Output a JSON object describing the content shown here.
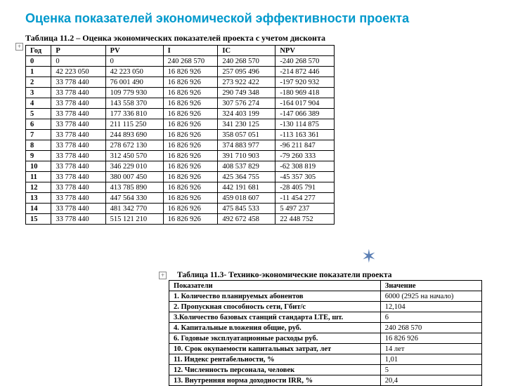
{
  "title": "Оценка показателей экономической эффективности проекта",
  "table1": {
    "caption": "Таблица 11.2 – Оценка экономических показателей проекта с учетом дисконта",
    "columns": [
      "Год",
      "P",
      "PV",
      "I",
      "IC",
      "NPV"
    ],
    "col_widths": [
      "30px",
      "80px",
      "84px",
      "76px",
      "84px",
      "84px"
    ],
    "rows": [
      [
        "0",
        "0",
        "0",
        "240 268 570",
        "240 268 570",
        "-240 268 570"
      ],
      [
        "1",
        "42 223 050",
        "42 223 050",
        "16 826 926",
        "257 095 496",
        "-214 872 446"
      ],
      [
        "2",
        "33 778 440",
        "76 001 490",
        "16 826 926",
        "273 922 422",
        "-197 920 932"
      ],
      [
        "3",
        "33 778 440",
        "109 779 930",
        "16 826 926",
        "290 749 348",
        "-180 969 418"
      ],
      [
        "4",
        "33 778 440",
        "143 558 370",
        "16 826 926",
        "307 576 274",
        "-164 017 904"
      ],
      [
        "5",
        "33 778 440",
        "177 336 810",
        "16 826 926",
        "324 403 199",
        "-147 066 389"
      ],
      [
        "6",
        "33 778 440",
        "211 115 250",
        "16 826 926",
        "341 230 125",
        "-130 114 875"
      ],
      [
        "7",
        "33 778 440",
        "244 893 690",
        "16 826 926",
        "358 057 051",
        "-113 163 361"
      ],
      [
        "8",
        "33 778 440",
        "278 672 130",
        "16 826 926",
        "374 883 977",
        "-96 211 847"
      ],
      [
        "9",
        "33 778 440",
        "312 450 570",
        "16 826 926",
        "391 710 903",
        "-79 260 333"
      ],
      [
        "10",
        "33 778 440",
        "346 229 010",
        "16 826 926",
        "408 537 829",
        "-62 308 819"
      ],
      [
        "11",
        "33 778 440",
        "380 007 450",
        "16 826 926",
        "425 364 755",
        "-45 357 305"
      ],
      [
        "12",
        "33 778 440",
        "413 785 890",
        "16 826 926",
        "442 191 681",
        "-28 405 791"
      ],
      [
        "13",
        "33 778 440",
        "447 564 330",
        "16 826 926",
        "459 018 607",
        "-11 454 277"
      ],
      [
        "14",
        "33 778 440",
        "481 342 770",
        "16 826 926",
        "475 845 533",
        "5 497 237"
      ],
      [
        "15",
        "33 778 440",
        "515 121 210",
        "16 826 926",
        "492 672 458",
        "22 448 752"
      ]
    ]
  },
  "table2": {
    "caption": "Таблица 11.3- Технико-экономические показатели проекта",
    "columns": [
      "Показатели",
      "Значение"
    ],
    "col_widths": [
      "300px",
      "140px"
    ],
    "rows": [
      [
        "1. Количество планируемых абонентов",
        "6000 (2925 на начало)"
      ],
      [
        "2. Пропускная способность сети, Гбит/с",
        "12,104"
      ],
      [
        "3.Количество базовых станций стандарта LTE, шт.",
        "6"
      ],
      [
        "4. Капитальные вложения общие, руб.",
        "240 268 570"
      ],
      [
        "6. Годовые эксплуатационные расходы руб.",
        "16 826 926"
      ],
      [
        "10. Срок окупаемости капитальных затрат, лет",
        "14 лет"
      ],
      [
        "11. Индекс рентабельности, %",
        "1,01"
      ],
      [
        "12. Численность персонала, человек",
        "5"
      ],
      [
        "13. Внутренняя норма доходности IRR, %",
        "20,4"
      ]
    ]
  },
  "star_color": "#5b7fb5"
}
